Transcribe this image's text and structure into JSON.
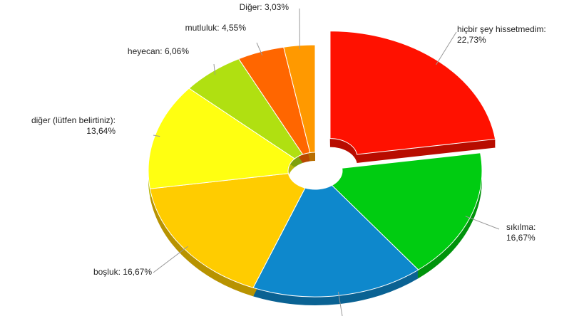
{
  "chart_data": {
    "type": "pie3d",
    "categories": [
      "hiçbir şey hissetmedim",
      "sıkılma",
      null,
      "boşluk",
      "diğer (lütfen belirtiniz)",
      "heyecan",
      "mutluluk",
      "Diğer"
    ],
    "values": [
      22.73,
      16.67,
      16.67,
      16.67,
      13.64,
      6.06,
      4.55,
      3.03
    ],
    "value_labels": [
      "22,73%",
      "16,67%",
      null,
      "16,67%",
      "13,64%",
      "6,06%",
      "4,55%",
      "3,03%"
    ],
    "label_separator": ": ",
    "colors": [
      "#ff1100",
      "#00cc11",
      "#0e88cc",
      "#ffcc00",
      "#ffff11",
      "#b0e011",
      "#ff6600",
      "#ff9900"
    ],
    "exploded": [
      0
    ]
  }
}
